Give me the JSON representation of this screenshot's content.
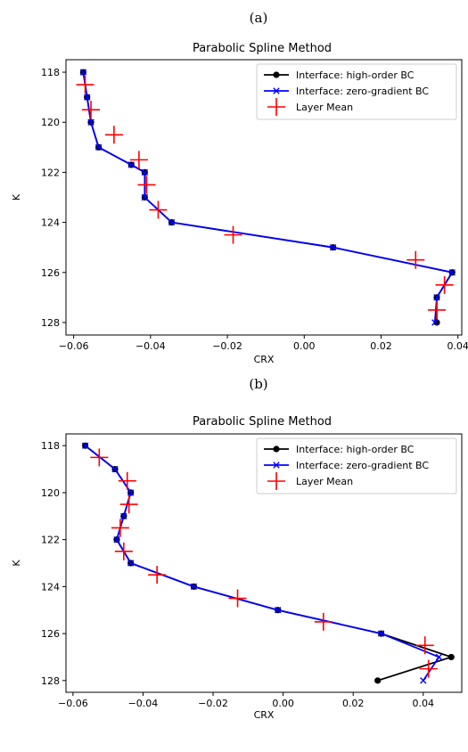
{
  "chart_data": [
    {
      "panel_label": "(a)",
      "type": "line",
      "title": "Parabolic Spline Method",
      "xlabel": "CRX",
      "ylabel": "K",
      "xlim": [
        -0.062,
        0.041
      ],
      "ylim": [
        128.5,
        117.5
      ],
      "y_inverted": true,
      "xticks": [
        -0.06,
        -0.04,
        -0.02,
        0.0,
        0.02,
        0.04
      ],
      "xtick_labels": [
        "−0.06",
        "−0.04",
        "−0.02",
        "0.00",
        "0.02",
        "0.04"
      ],
      "yticks": [
        118,
        120,
        122,
        124,
        126,
        128
      ],
      "ytick_labels": [
        "118",
        "120",
        "122",
        "124",
        "126",
        "128"
      ],
      "legend_position": "top-right",
      "series": [
        {
          "name": "Interface: high-order BC",
          "color": "#000000",
          "marker": "circle",
          "points": [
            [
              -0.0575,
              118
            ],
            [
              -0.0565,
              119
            ],
            [
              -0.0555,
              120
            ],
            [
              -0.0535,
              121
            ],
            [
              -0.045,
              121.7
            ],
            [
              -0.0415,
              122
            ],
            [
              -0.0415,
              123
            ],
            [
              -0.0345,
              124
            ],
            [
              0.0075,
              125
            ],
            [
              0.0385,
              126
            ],
            [
              0.0345,
              127
            ],
            [
              0.0345,
              128
            ]
          ]
        },
        {
          "name": "Interface: zero-gradient BC",
          "color": "#0000ff",
          "marker": "x",
          "points": [
            [
              -0.0575,
              118
            ],
            [
              -0.0565,
              119
            ],
            [
              -0.0555,
              120
            ],
            [
              -0.0535,
              121
            ],
            [
              -0.045,
              121.7
            ],
            [
              -0.0415,
              122
            ],
            [
              -0.0415,
              123
            ],
            [
              -0.0345,
              124
            ],
            [
              0.0075,
              125
            ],
            [
              0.0385,
              126
            ],
            [
              0.0345,
              127
            ],
            [
              0.034,
              128
            ]
          ]
        },
        {
          "name": "Layer Mean",
          "color": "#ff0000",
          "marker": "plus",
          "points": [
            [
              -0.057,
              118.5
            ],
            [
              -0.0555,
              119.5
            ],
            [
              -0.0495,
              120.5
            ],
            [
              -0.043,
              121.5
            ],
            [
              -0.041,
              122.5
            ],
            [
              -0.038,
              123.5
            ],
            [
              -0.0185,
              124.5
            ],
            [
              0.029,
              125.5
            ],
            [
              0.0365,
              126.5
            ],
            [
              0.0345,
              127.5
            ]
          ]
        }
      ]
    },
    {
      "panel_label": "(b)",
      "type": "line",
      "title": "Parabolic Spline Method",
      "xlabel": "CRX",
      "ylabel": "K",
      "xlim": [
        -0.062,
        0.051
      ],
      "ylim": [
        128.5,
        117.5
      ],
      "y_inverted": true,
      "xticks": [
        -0.06,
        -0.04,
        -0.02,
        0.0,
        0.02,
        0.04
      ],
      "xtick_labels": [
        "−0.06",
        "−0.04",
        "−0.02",
        "0.00",
        "0.02",
        "0.04"
      ],
      "yticks": [
        118,
        120,
        122,
        124,
        126,
        128
      ],
      "ytick_labels": [
        "118",
        "120",
        "122",
        "124",
        "126",
        "128"
      ],
      "legend_position": "top-right",
      "series": [
        {
          "name": "Interface: high-order BC",
          "color": "#000000",
          "marker": "circle",
          "points": [
            [
              -0.0565,
              118
            ],
            [
              -0.048,
              119
            ],
            [
              -0.0435,
              120
            ],
            [
              -0.0455,
              121
            ],
            [
              -0.0475,
              122
            ],
            [
              -0.0435,
              123
            ],
            [
              -0.0255,
              124
            ],
            [
              -0.0015,
              125
            ],
            [
              0.028,
              126
            ],
            [
              0.048,
              127
            ],
            [
              0.027,
              128
            ]
          ]
        },
        {
          "name": "Interface: zero-gradient BC",
          "color": "#0000ff",
          "marker": "x",
          "points": [
            [
              -0.0565,
              118
            ],
            [
              -0.048,
              119
            ],
            [
              -0.0435,
              120
            ],
            [
              -0.0455,
              121
            ],
            [
              -0.0475,
              122
            ],
            [
              -0.0435,
              123
            ],
            [
              -0.0255,
              124
            ],
            [
              -0.0015,
              125
            ],
            [
              0.028,
              126
            ],
            [
              0.0445,
              127
            ],
            [
              0.04,
              128
            ]
          ]
        },
        {
          "name": "Layer Mean",
          "color": "#ff0000",
          "marker": "plus",
          "points": [
            [
              -0.0525,
              118.5
            ],
            [
              -0.0445,
              119.5
            ],
            [
              -0.044,
              120.5
            ],
            [
              -0.0465,
              121.5
            ],
            [
              -0.0455,
              122.5
            ],
            [
              -0.036,
              123.5
            ],
            [
              -0.013,
              124.5
            ],
            [
              0.0115,
              125.5
            ],
            [
              0.0405,
              126.5
            ],
            [
              0.0415,
              127.5
            ]
          ]
        }
      ]
    }
  ]
}
